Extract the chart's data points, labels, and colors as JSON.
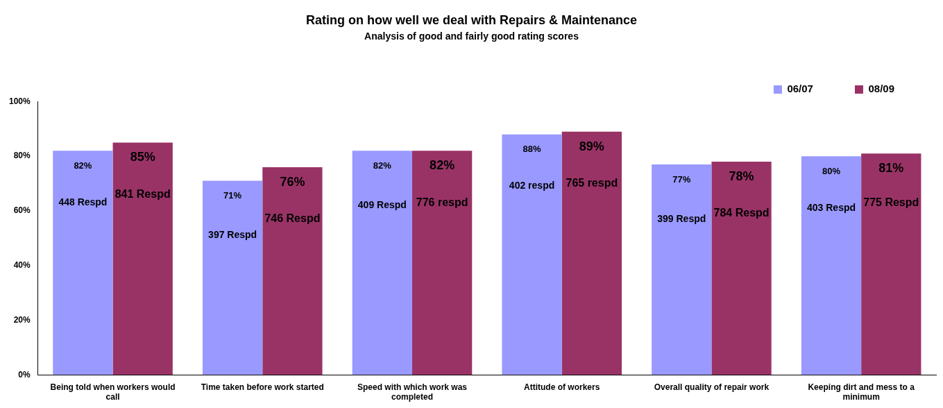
{
  "chart_data": {
    "type": "bar",
    "title": "Rating on how well we deal with Repairs & Maintenance",
    "subtitle": "Analysis of good and fairly good rating scores",
    "categories": [
      "Being told when workers would call",
      "Time taken before work started",
      "Speed with which work was completed",
      "Attitude of workers",
      "Overall quality of repair work",
      "Keeping dirt and mess to a minimum"
    ],
    "series": [
      {
        "name": "06/07",
        "color": "#9999ff",
        "values": [
          82,
          71,
          82,
          88,
          77,
          80
        ],
        "value_labels": [
          "82%",
          "71%",
          "82%",
          "88%",
          "77%",
          "80%"
        ]
      },
      {
        "name": "08/09",
        "color": "#993366",
        "values": [
          85,
          76,
          82,
          89,
          78,
          81
        ],
        "value_labels": [
          "85%",
          "76%",
          "82%",
          "89%",
          "78%",
          "81%"
        ]
      }
    ],
    "ylim": [
      0,
      100
    ],
    "yticks": [
      {
        "value": 0,
        "label": "0%"
      },
      {
        "value": 20,
        "label": "20%"
      },
      {
        "value": 40,
        "label": "40%"
      },
      {
        "value": 60,
        "label": "60%"
      },
      {
        "value": 80,
        "label": "80%"
      },
      {
        "value": 100,
        "label": "100%"
      }
    ],
    "grid": false,
    "legend": "top right",
    "annotations": [
      {
        "text": "448 Respd",
        "x": "Being told when workers would call",
        "y": 63
      },
      {
        "text": "397 Respd",
        "x": "Time taken before work started",
        "y": 51
      },
      {
        "text": "409 Respd",
        "x": "Speed with which work was completed",
        "y": 62
      },
      {
        "text": "402 respd",
        "x": "Attitude of workers",
        "y": 69
      },
      {
        "text": "399 Respd",
        "x": "Overall quality of repair work",
        "y": 57
      },
      {
        "text": "403 Respd",
        "x": "Keeping dirt and mess to a minimum",
        "y": 61
      },
      {
        "text": "841 Respd",
        "x": "Being told when workers would call",
        "y": 66
      },
      {
        "text": "746 Respd",
        "x": "Time taken before work started",
        "y": 57
      },
      {
        "text": "776 respd",
        "x": "Speed with which work was completed",
        "y": 63
      },
      {
        "text": "765 respd",
        "x": "Attitude of workers",
        "y": 70
      },
      {
        "text": "784 Respd",
        "x": "Overall quality of repair work",
        "y": 59
      },
      {
        "text": "775 Respd",
        "x": "Keeping dirt and mess to a minimum",
        "y": 63
      }
    ]
  }
}
